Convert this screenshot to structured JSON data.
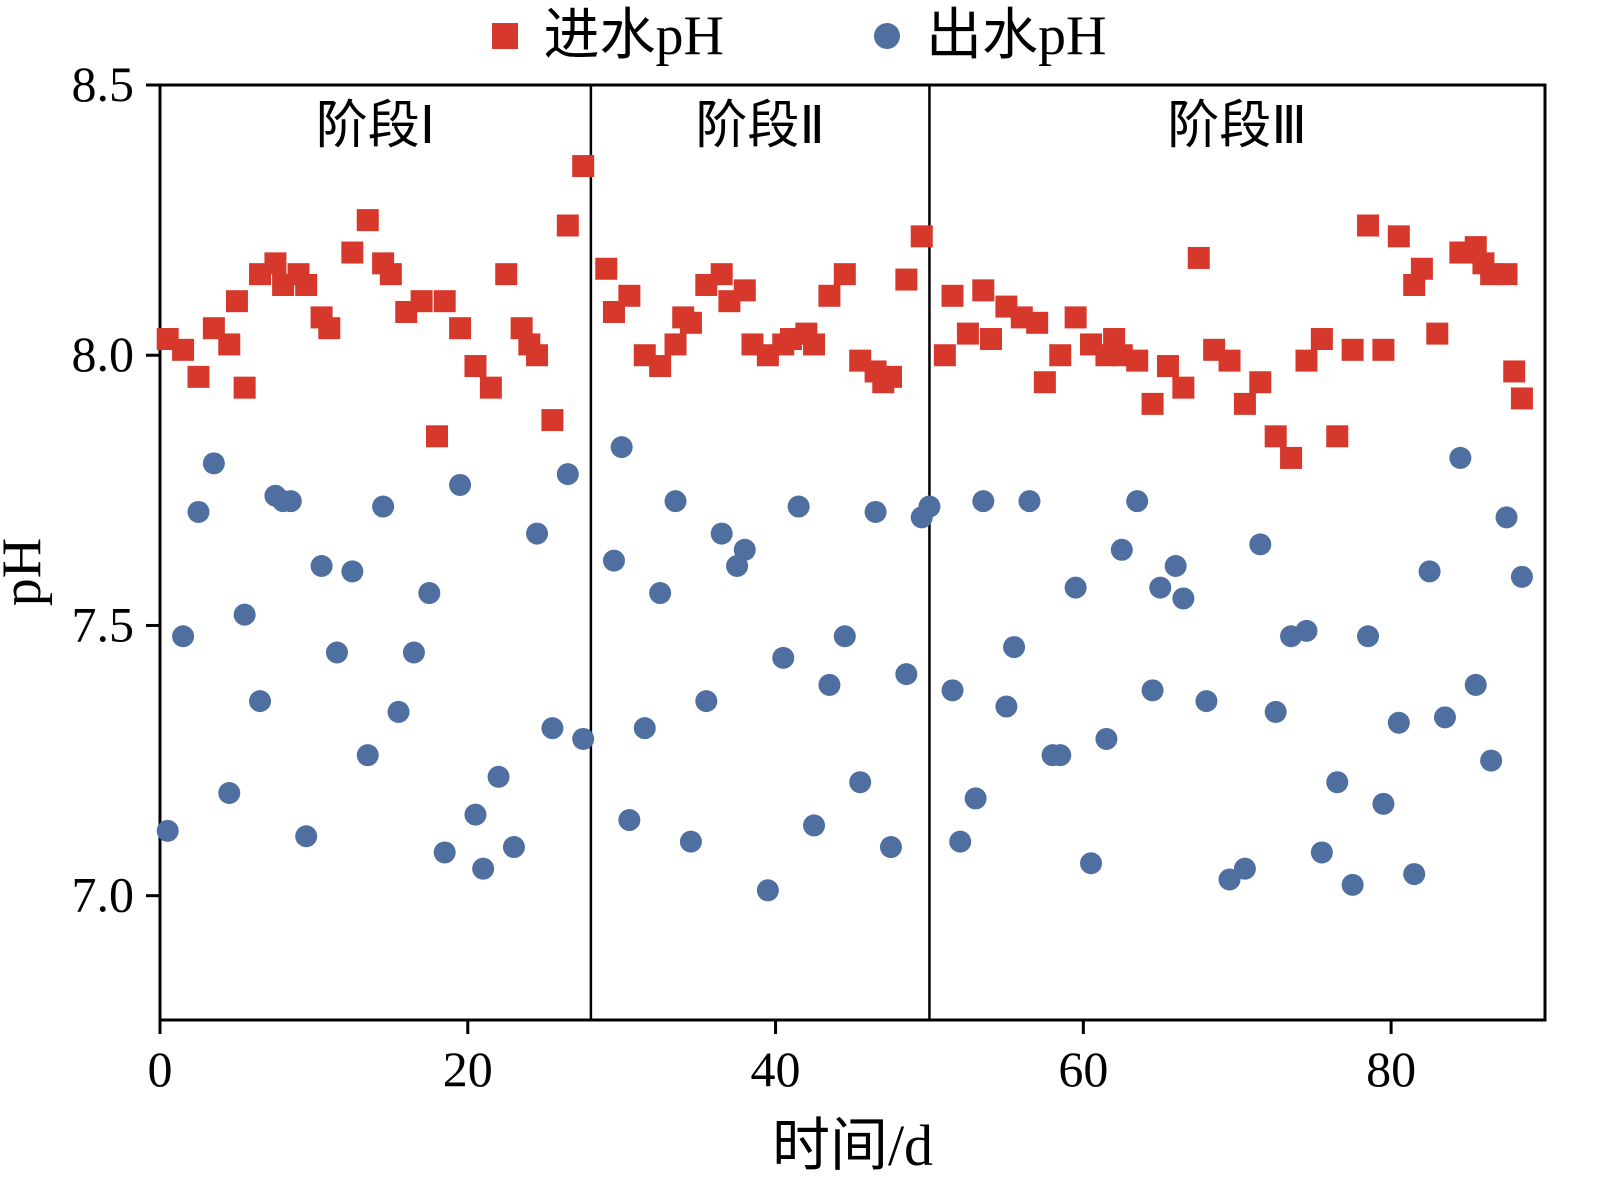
{
  "legend": {
    "items": [
      {
        "label": "进水pH",
        "marker": "square",
        "color": "#d6382c"
      },
      {
        "label": "出水pH",
        "marker": "circle",
        "color": "#4e6f9f"
      }
    ]
  },
  "axes": {
    "xlabel": "时间/d",
    "ylabel": "pH"
  },
  "chart_data": {
    "type": "scatter",
    "title": "",
    "xlabel": "时间/d",
    "ylabel": "pH",
    "xlim": [
      0,
      90
    ],
    "ylim": [
      6.77,
      8.5
    ],
    "x_ticks": [
      0,
      20,
      40,
      60,
      80
    ],
    "y_ticks": [
      7.0,
      7.5,
      8.0,
      8.5
    ],
    "y_tick_labels": [
      "7.0",
      "7.5",
      "8.0",
      "8.5"
    ],
    "grid": false,
    "legend_position": "top-center",
    "phase_dividers_x": [
      28,
      50
    ],
    "phases": [
      {
        "label": "阶段Ⅰ",
        "x_center": 14
      },
      {
        "label": "阶段Ⅱ",
        "x_center": 39
      },
      {
        "label": "阶段Ⅲ",
        "x_center": 70
      }
    ],
    "series": [
      {
        "name": "进水pH",
        "marker": "square",
        "color": "#d6382c",
        "points": [
          [
            0.5,
            8.03
          ],
          [
            1.5,
            8.01
          ],
          [
            2.5,
            7.96
          ],
          [
            3.5,
            8.05
          ],
          [
            4.5,
            8.02
          ],
          [
            5,
            8.1
          ],
          [
            5.5,
            7.94
          ],
          [
            6.5,
            8.15
          ],
          [
            7.5,
            8.17
          ],
          [
            8,
            8.13
          ],
          [
            9,
            8.15
          ],
          [
            9.5,
            8.13
          ],
          [
            10.5,
            8.07
          ],
          [
            11,
            8.05
          ],
          [
            12.5,
            8.19
          ],
          [
            13.5,
            8.25
          ],
          [
            14.5,
            8.17
          ],
          [
            15,
            8.15
          ],
          [
            16,
            8.08
          ],
          [
            17,
            8.1
          ],
          [
            18,
            7.85
          ],
          [
            18.5,
            8.1
          ],
          [
            19.5,
            8.05
          ],
          [
            20.5,
            7.98
          ],
          [
            21.5,
            7.94
          ],
          [
            22.5,
            8.15
          ],
          [
            23.5,
            8.05
          ],
          [
            24,
            8.02
          ],
          [
            24.5,
            8.0
          ],
          [
            25.5,
            7.88
          ],
          [
            26.5,
            8.24
          ],
          [
            27.5,
            8.35
          ],
          [
            29,
            8.16
          ],
          [
            29.5,
            8.08
          ],
          [
            30.5,
            8.11
          ],
          [
            31.5,
            8.0
          ],
          [
            32.5,
            7.98
          ],
          [
            33.5,
            8.02
          ],
          [
            34,
            8.07
          ],
          [
            34.5,
            8.06
          ],
          [
            35.5,
            8.13
          ],
          [
            36.5,
            8.15
          ],
          [
            37,
            8.1
          ],
          [
            38,
            8.12
          ],
          [
            38.5,
            8.02
          ],
          [
            39.5,
            8.0
          ],
          [
            40.5,
            8.02
          ],
          [
            41,
            8.03
          ],
          [
            42,
            8.04
          ],
          [
            42.5,
            8.02
          ],
          [
            43.5,
            8.11
          ],
          [
            44.5,
            8.15
          ],
          [
            45.5,
            7.99
          ],
          [
            46.5,
            7.97
          ],
          [
            47,
            7.95
          ],
          [
            47.5,
            7.96
          ],
          [
            48.5,
            8.14
          ],
          [
            49.5,
            8.22
          ],
          [
            51,
            8.0
          ],
          [
            51.5,
            8.11
          ],
          [
            52.5,
            8.04
          ],
          [
            53.5,
            8.12
          ],
          [
            54,
            8.03
          ],
          [
            55,
            8.09
          ],
          [
            56,
            8.07
          ],
          [
            57,
            8.06
          ],
          [
            57.5,
            7.95
          ],
          [
            58.5,
            8.0
          ],
          [
            59.5,
            8.07
          ],
          [
            60.5,
            8.02
          ],
          [
            61.5,
            8.0
          ],
          [
            62,
            8.03
          ],
          [
            62.5,
            8.0
          ],
          [
            63.5,
            7.99
          ],
          [
            64.5,
            7.91
          ],
          [
            65.5,
            7.98
          ],
          [
            66.5,
            7.94
          ],
          [
            67.5,
            8.18
          ],
          [
            68.5,
            8.01
          ],
          [
            69.5,
            7.99
          ],
          [
            70.5,
            7.91
          ],
          [
            71.5,
            7.95
          ],
          [
            72.5,
            7.85
          ],
          [
            73.5,
            7.81
          ],
          [
            74.5,
            7.99
          ],
          [
            75.5,
            8.03
          ],
          [
            76.5,
            7.85
          ],
          [
            77.5,
            8.01
          ],
          [
            78.5,
            8.24
          ],
          [
            79.5,
            8.01
          ],
          [
            80.5,
            8.22
          ],
          [
            81.5,
            8.13
          ],
          [
            82,
            8.16
          ],
          [
            83,
            8.04
          ],
          [
            84.5,
            8.19
          ],
          [
            85,
            8.19
          ],
          [
            85.5,
            8.2
          ],
          [
            86,
            8.17
          ],
          [
            86.5,
            8.15
          ],
          [
            87.5,
            8.15
          ],
          [
            88,
            7.97
          ],
          [
            88.5,
            7.92
          ]
        ]
      },
      {
        "name": "出水pH",
        "marker": "circle",
        "color": "#4e6f9f",
        "points": [
          [
            0.5,
            7.12
          ],
          [
            1.5,
            7.48
          ],
          [
            2.5,
            7.71
          ],
          [
            3.5,
            7.8
          ],
          [
            4.5,
            7.19
          ],
          [
            5.5,
            7.52
          ],
          [
            6.5,
            7.36
          ],
          [
            7.5,
            7.74
          ],
          [
            8,
            7.73
          ],
          [
            8.5,
            7.73
          ],
          [
            9.5,
            7.11
          ],
          [
            10.5,
            7.61
          ],
          [
            11.5,
            7.45
          ],
          [
            12.5,
            7.6
          ],
          [
            13.5,
            7.26
          ],
          [
            14.5,
            7.72
          ],
          [
            15.5,
            7.34
          ],
          [
            16.5,
            7.45
          ],
          [
            17.5,
            7.56
          ],
          [
            18.5,
            7.08
          ],
          [
            19.5,
            7.76
          ],
          [
            20.5,
            7.15
          ],
          [
            21,
            7.05
          ],
          [
            22,
            7.22
          ],
          [
            23,
            7.09
          ],
          [
            24.5,
            7.67
          ],
          [
            25.5,
            7.31
          ],
          [
            26.5,
            7.78
          ],
          [
            27.5,
            7.29
          ],
          [
            29.5,
            7.62
          ],
          [
            30,
            7.83
          ],
          [
            30.5,
            7.14
          ],
          [
            31.5,
            7.31
          ],
          [
            32.5,
            7.56
          ],
          [
            33.5,
            7.73
          ],
          [
            34.5,
            7.1
          ],
          [
            35.5,
            7.36
          ],
          [
            36.5,
            7.67
          ],
          [
            37.5,
            7.61
          ],
          [
            38,
            7.64
          ],
          [
            39.5,
            7.01
          ],
          [
            40.5,
            7.44
          ],
          [
            41.5,
            7.72
          ],
          [
            42.5,
            7.13
          ],
          [
            43.5,
            7.39
          ],
          [
            44.5,
            7.48
          ],
          [
            45.5,
            7.21
          ],
          [
            46.5,
            7.71
          ],
          [
            47.5,
            7.09
          ],
          [
            48.5,
            7.41
          ],
          [
            49.5,
            7.7
          ],
          [
            50,
            7.72
          ],
          [
            51.5,
            7.38
          ],
          [
            52,
            7.1
          ],
          [
            53,
            7.18
          ],
          [
            53.5,
            7.73
          ],
          [
            55,
            7.35
          ],
          [
            55.5,
            7.46
          ],
          [
            56.5,
            7.73
          ],
          [
            58,
            7.26
          ],
          [
            58.5,
            7.26
          ],
          [
            59.5,
            7.57
          ],
          [
            60.5,
            7.06
          ],
          [
            61.5,
            7.29
          ],
          [
            62.5,
            7.64
          ],
          [
            63.5,
            7.73
          ],
          [
            64.5,
            7.38
          ],
          [
            65,
            7.57
          ],
          [
            66,
            7.61
          ],
          [
            66.5,
            7.55
          ],
          [
            68,
            7.36
          ],
          [
            69.5,
            7.03
          ],
          [
            70.5,
            7.05
          ],
          [
            71.5,
            7.65
          ],
          [
            72.5,
            7.34
          ],
          [
            73.5,
            7.48
          ],
          [
            74.5,
            7.49
          ],
          [
            75.5,
            7.08
          ],
          [
            76.5,
            7.21
          ],
          [
            77.5,
            7.02
          ],
          [
            78.5,
            7.48
          ],
          [
            79.5,
            7.17
          ],
          [
            80.5,
            7.32
          ],
          [
            81.5,
            7.04
          ],
          [
            82.5,
            7.6
          ],
          [
            83.5,
            7.33
          ],
          [
            84.5,
            7.81
          ],
          [
            85.5,
            7.39
          ],
          [
            86.5,
            7.25
          ],
          [
            87.5,
            7.7
          ],
          [
            88.5,
            7.59
          ]
        ]
      }
    ]
  }
}
